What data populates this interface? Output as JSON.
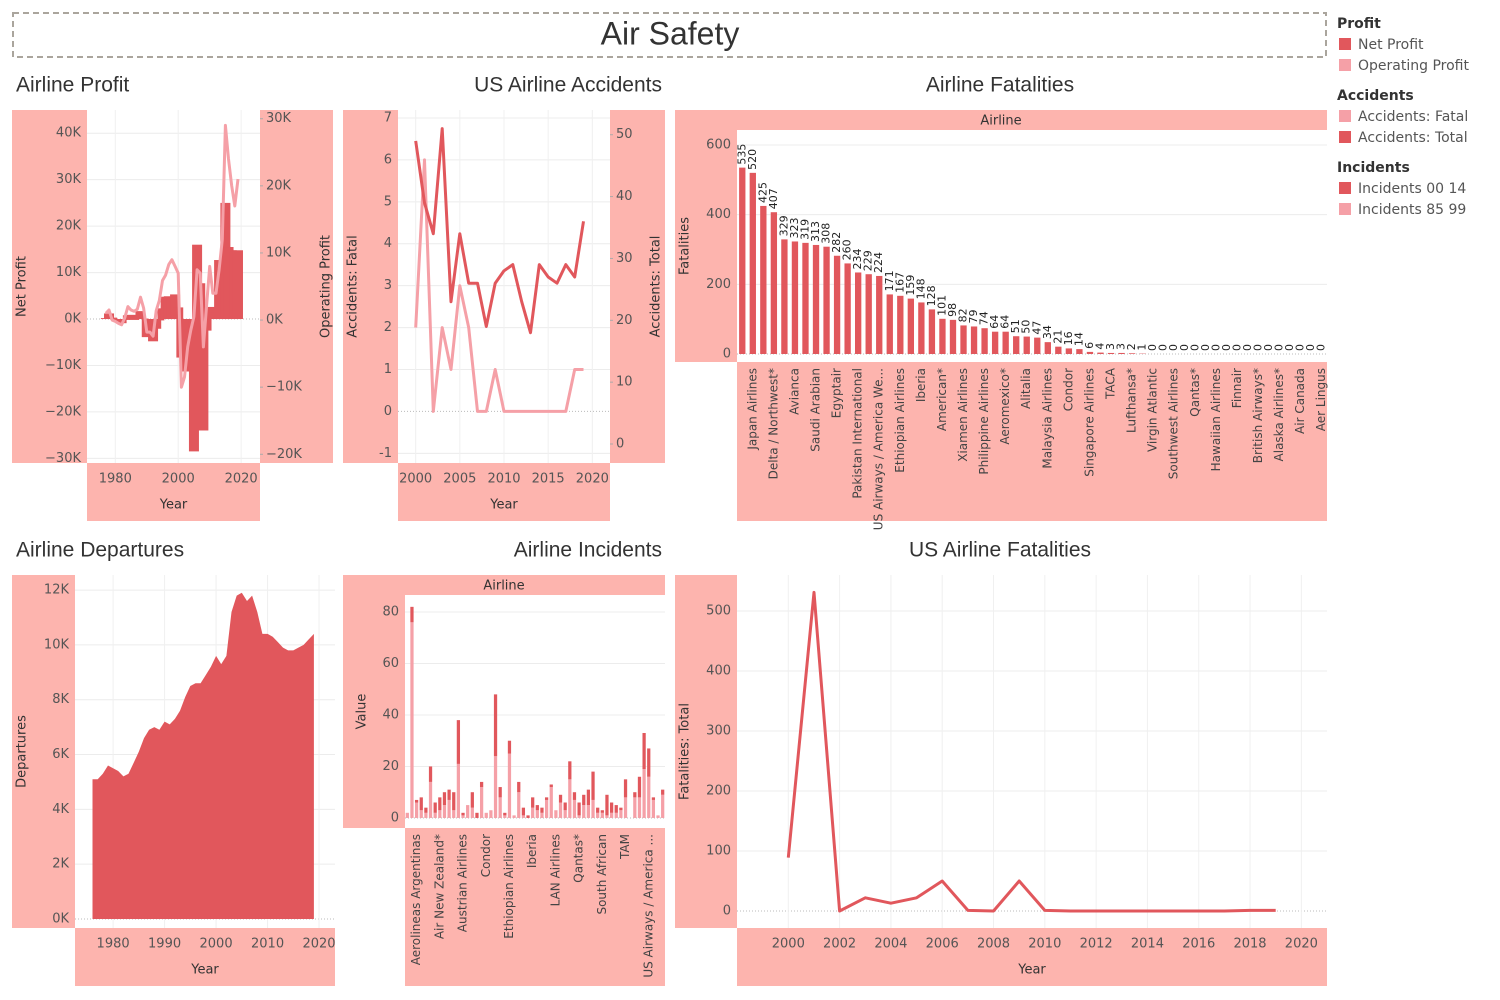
{
  "title": "Air Safety",
  "chart_data": [
    {
      "type": "bar",
      "title": "Airline Profit",
      "legend_title": "Profit",
      "x": [
        1977,
        1978,
        1979,
        1980,
        1981,
        1982,
        1983,
        1984,
        1985,
        1986,
        1987,
        1988,
        1989,
        1990,
        1991,
        1992,
        1993,
        1994,
        1995,
        1996,
        1997,
        1998,
        1999,
        2000,
        2001,
        2002,
        2003,
        2004,
        2005,
        2006,
        2007,
        2008,
        2009,
        2010,
        2011,
        2012,
        2013,
        2014,
        2015,
        2016,
        2017,
        2018,
        2019
      ],
      "series": [
        {
          "name": "Net Profit",
          "type": "bar",
          "color": "#e1575c",
          "values": [
            200,
            1200,
            300,
            -200,
            -400,
            -900,
            -200,
            800,
            900,
            -200,
            600,
            1700,
            100,
            -3900,
            -1900,
            -4800,
            -2100,
            -300,
            2300,
            4800,
            4900,
            4600,
            5300,
            2500,
            -8300,
            -11300,
            -5700,
            -9100,
            -28500,
            16000,
            7700,
            -24000,
            -2500,
            2600,
            1400,
            100,
            12700,
            7500,
            25000,
            15500,
            14800,
            14500,
            14800
          ]
        },
        {
          "name": "Operating Profit",
          "type": "line",
          "axis": "y2",
          "color": "#f5a0a7",
          "values": [
            1000,
            1500,
            0,
            -200,
            -500,
            -700,
            300,
            2000,
            1500,
            1300,
            1600,
            3400,
            1800,
            -1800,
            -1800,
            -2400,
            1400,
            2900,
            5900,
            6700,
            8300,
            9000,
            8000,
            7000,
            -10000,
            -8500,
            -4000,
            -1500,
            500,
            7500,
            7000,
            -4000,
            2000,
            8000,
            4000,
            4000,
            7500,
            12000,
            29000,
            24000,
            20000,
            17000,
            21000
          ]
        }
      ],
      "xlim": [
        1971,
        2026
      ],
      "xticks": [
        1980,
        2000,
        2020
      ],
      "ylim": [
        -31000,
        45000
      ],
      "yticks": [
        {
          "value": -30000,
          "label": "−30K"
        },
        {
          "value": -20000,
          "label": "−20K"
        },
        {
          "value": -10000,
          "label": "−10K"
        },
        {
          "value": 0,
          "label": "0K"
        },
        {
          "value": 10000,
          "label": "10K"
        },
        {
          "value": 20000,
          "label": "20K"
        },
        {
          "value": 30000,
          "label": "30K"
        },
        {
          "value": 40000,
          "label": "40K"
        }
      ],
      "y2lim": [
        -21300,
        31300
      ],
      "y2ticks": [
        {
          "value": -20000,
          "label": "−20K"
        },
        {
          "value": -10000,
          "label": "−10K"
        },
        {
          "value": 0,
          "label": "0K"
        },
        {
          "value": 10000,
          "label": "10K"
        },
        {
          "value": 20000,
          "label": "20K"
        },
        {
          "value": 30000,
          "label": "30K"
        }
      ],
      "xlabel": "Year",
      "ylabel": "Net Profit",
      "y2label": "Operating Profit",
      "grid": true
    },
    {
      "type": "line",
      "title": "US Airline Accidents",
      "legend_title": "Accidents",
      "x": [
        2000,
        2001,
        2002,
        2003,
        2004,
        2005,
        2006,
        2007,
        2008,
        2009,
        2010,
        2011,
        2012,
        2013,
        2014,
        2015,
        2016,
        2017,
        2018,
        2019
      ],
      "series": [
        {
          "name": "Accidents: Fatal",
          "color": "#f5a0a7",
          "values": [
            2,
            6,
            0,
            2,
            1,
            3,
            2,
            0,
            0,
            1,
            0,
            0,
            0,
            0,
            0,
            0,
            0,
            0,
            1,
            1
          ]
        },
        {
          "name": "Accidents: Total",
          "axis": "y2",
          "color": "#e1575c",
          "values": [
            49,
            39,
            34,
            51,
            23,
            34,
            26,
            26,
            19,
            26,
            28,
            29,
            23,
            18,
            29,
            27,
            26,
            29,
            27,
            36
          ]
        }
      ],
      "xlim": [
        1998,
        2022
      ],
      "xticks": [
        2000,
        2005,
        2010,
        2015,
        2020
      ],
      "ylim": [
        -1.23,
        7.19
      ],
      "yticks": [
        -1,
        0,
        1,
        2,
        3,
        4,
        5,
        6,
        7
      ],
      "y2lim": [
        -3.07,
        54
      ],
      "y2ticks": [
        0,
        10,
        20,
        30,
        40,
        50
      ],
      "xlabel": "Year",
      "ylabel": "Accidents: Fatal",
      "y2label": "Accidents: Total",
      "grid": true
    },
    {
      "type": "bar",
      "title": "Airline Fatalities",
      "header": "Airline",
      "categories": [
        null,
        "Japan Airlines",
        null,
        "Delta / Northwest*",
        null,
        "Avianca",
        null,
        "Saudi Arabian",
        null,
        "Egyptair",
        null,
        "Pakistan International",
        null,
        "US Airways / America We...",
        null,
        "Ethiopian Airlines",
        null,
        "Iberia",
        null,
        "American*",
        null,
        "Xiamen Airlines",
        null,
        "Philippine Airlines",
        null,
        "Aeromexico*",
        null,
        "Alitalia",
        null,
        "Malaysia Airlines",
        null,
        "Condor",
        null,
        "Singapore Airlines",
        null,
        "TACA",
        null,
        "Lufthansa*",
        null,
        "Virgin Atlantic",
        null,
        "Southwest Airlines",
        null,
        "Qantas*",
        null,
        "Hawaiian Airlines",
        null,
        "Finnair",
        null,
        "British Airways*",
        null,
        "Alaska Airlines*",
        null,
        "Air Canada",
        null,
        "Aer Lingus"
      ],
      "values": [
        535,
        520,
        425,
        407,
        329,
        323,
        319,
        313,
        308,
        282,
        260,
        234,
        229,
        224,
        171,
        167,
        159,
        148,
        128,
        101,
        98,
        82,
        79,
        74,
        64,
        64,
        51,
        50,
        47,
        34,
        21,
        16,
        14,
        6,
        4,
        3,
        3,
        2,
        1,
        0,
        0,
        0,
        0,
        0,
        0,
        0,
        0,
        0,
        0,
        0,
        0,
        0,
        0,
        0,
        0,
        0
      ],
      "color": "#e1575c",
      "data_labels": true,
      "ylim": [
        -23,
        643
      ],
      "yticks": [
        0,
        200,
        400,
        600
      ],
      "ylabel": "Fatalities",
      "grid": true
    },
    {
      "type": "area",
      "title": "Airline Departures",
      "x": [
        1976,
        1977,
        1978,
        1979,
        1980,
        1981,
        1982,
        1983,
        1984,
        1985,
        1986,
        1987,
        1988,
        1989,
        1990,
        1991,
        1992,
        1993,
        1994,
        1995,
        1996,
        1997,
        1998,
        1999,
        2000,
        2001,
        2002,
        2003,
        2004,
        2005,
        2006,
        2007,
        2008,
        2009,
        2010,
        2011,
        2012,
        2013,
        2014,
        2015,
        2016,
        2017,
        2018,
        2019
      ],
      "values": [
        5100,
        5100,
        5300,
        5600,
        5500,
        5400,
        5200,
        5300,
        5700,
        6100,
        6600,
        6900,
        7000,
        6900,
        7200,
        7100,
        7300,
        7600,
        8100,
        8500,
        8600,
        8600,
        8900,
        9200,
        9600,
        9300,
        9600,
        11200,
        11800,
        11900,
        11600,
        11800,
        11200,
        10400,
        10400,
        10300,
        10100,
        9900,
        9800,
        9800,
        9900,
        10000,
        10200,
        10400
      ],
      "color": "#e1575c",
      "xlim": [
        1972.6,
        2023.1
      ],
      "xticks": [
        1980,
        1990,
        2000,
        2010,
        2020
      ],
      "ylim": [
        -330,
        12550
      ],
      "yticks": [
        {
          "value": 0,
          "label": "0K"
        },
        {
          "value": 2000,
          "label": "2K"
        },
        {
          "value": 4000,
          "label": "4K"
        },
        {
          "value": 6000,
          "label": "6K"
        },
        {
          "value": 8000,
          "label": "8K"
        },
        {
          "value": 10000,
          "label": "10K"
        },
        {
          "value": 12000,
          "label": "12K"
        }
      ],
      "xlabel": "Year",
      "ylabel": "Departures",
      "grid": true
    },
    {
      "type": "bar",
      "stacked": true,
      "title": "Airline Incidents",
      "header": "Airline",
      "legend_title": "Incidents",
      "categories": [
        null,
        null,
        "Aerolineas Argentinas",
        null,
        null,
        null,
        null,
        "Air New Zealand*",
        null,
        null,
        null,
        null,
        "Austrian Airlines",
        null,
        null,
        null,
        null,
        "Condor",
        null,
        null,
        null,
        null,
        "Ethiopian Airlines",
        null,
        null,
        null,
        null,
        "Iberia",
        null,
        null,
        null,
        null,
        "LAN Airlines",
        null,
        null,
        null,
        null,
        "Qantas*",
        null,
        null,
        null,
        null,
        "South African",
        null,
        null,
        null,
        null,
        "TAM",
        null,
        null,
        null,
        null,
        "US Airways / America ...",
        null,
        null,
        null
      ],
      "series": [
        {
          "name": "Incidents 00 14",
          "color": "#e1575c",
          "values": [
            0,
            6,
            1,
            5,
            2,
            6,
            4,
            5,
            5,
            4,
            7,
            17,
            1,
            0,
            6,
            2,
            2,
            0,
            0,
            24,
            4,
            1,
            5,
            0,
            4,
            3,
            1,
            4,
            2,
            2,
            1,
            1,
            0,
            3,
            3,
            7,
            3,
            5,
            4,
            6,
            11,
            2,
            1,
            8,
            4,
            3,
            1,
            7,
            0,
            2,
            8,
            14,
            11,
            1,
            0,
            2
          ]
        },
        {
          "name": "Incidents 85 99",
          "color": "#f5a0a7",
          "values": [
            2,
            76,
            6,
            3,
            2,
            14,
            2,
            3,
            5,
            7,
            3,
            21,
            1,
            5,
            4,
            0,
            12,
            2,
            3,
            24,
            8,
            1,
            25,
            1,
            10,
            1,
            0,
            4,
            3,
            2,
            7,
            12,
            3,
            6,
            3,
            15,
            7,
            1,
            5,
            5,
            7,
            2,
            2,
            1,
            2,
            2,
            3,
            8,
            0,
            8,
            8,
            19,
            16,
            7,
            1,
            9
          ]
        }
      ],
      "ylim": [
        -3.9,
        86.6
      ],
      "yticks": [
        0,
        20,
        40,
        60,
        80
      ],
      "ylabel": "Value",
      "grid": true
    },
    {
      "type": "line",
      "title": "US Airline Fatalities",
      "x": [
        2000,
        2001,
        2002,
        2003,
        2004,
        2005,
        2006,
        2007,
        2008,
        2009,
        2010,
        2011,
        2012,
        2013,
        2014,
        2015,
        2016,
        2017,
        2018,
        2019
      ],
      "series": [
        {
          "color": "#e1575c",
          "values": [
            89,
            531,
            0,
            22,
            13,
            22,
            50,
            1,
            0,
            50,
            1,
            0,
            0,
            0,
            0,
            0,
            0,
            0,
            1,
            1
          ]
        }
      ],
      "xlim": [
        1998,
        2021
      ],
      "xticks": [
        2000,
        2002,
        2004,
        2006,
        2008,
        2010,
        2012,
        2014,
        2016,
        2018,
        2020
      ],
      "ylim": [
        -28.3,
        560
      ],
      "yticks": [
        0,
        100,
        200,
        300,
        400,
        500
      ],
      "xlabel": "Year",
      "ylabel": "Fatalities: Total",
      "grid": true
    }
  ]
}
